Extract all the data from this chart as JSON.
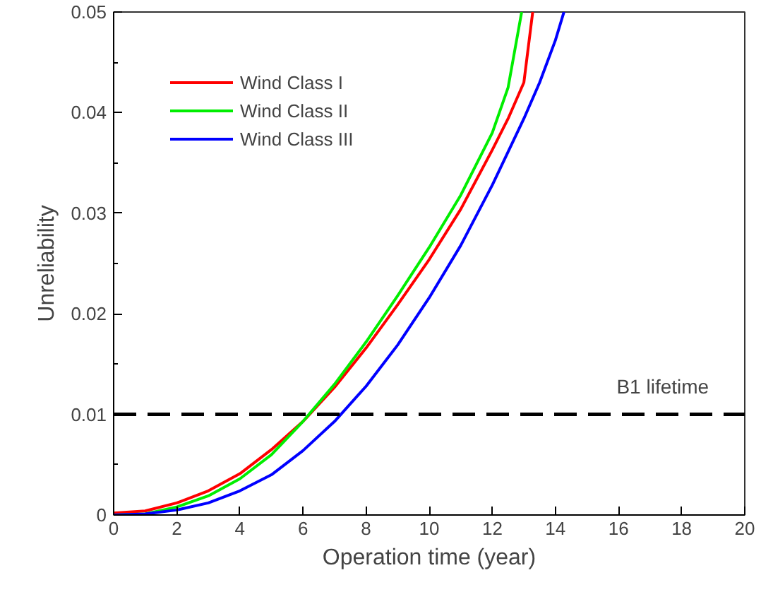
{
  "chart_data": {
    "type": "line",
    "xlabel": "Operation time (year)",
    "ylabel": "Unreliability",
    "xlim": [
      0,
      20
    ],
    "ylim": [
      0,
      0.05
    ],
    "xticks": [
      0,
      2,
      4,
      6,
      8,
      10,
      12,
      14,
      16,
      18,
      20
    ],
    "yticks": [
      0,
      0.01,
      0.02,
      0.03,
      0.04,
      0.05
    ],
    "grid": false,
    "legend": "top left",
    "marker": "none",
    "line_style": "solid",
    "series": [
      {
        "name": "Wind Class I",
        "color": "#ff0000",
        "x": [
          0,
          1,
          2,
          3,
          4,
          5,
          6,
          7,
          8,
          9,
          10,
          11,
          12,
          12.5,
          13,
          13.28
        ],
        "values": [
          0.0002,
          0.0004,
          0.0012,
          0.0024,
          0.0041,
          0.0065,
          0.0093,
          0.0127,
          0.0166,
          0.0209,
          0.0254,
          0.0304,
          0.0363,
          0.0394,
          0.043,
          0.05
        ]
      },
      {
        "name": "Wind Class II",
        "color": "#00ee00",
        "x": [
          0,
          1,
          2,
          3,
          4,
          5,
          6,
          7,
          8,
          9,
          10,
          11,
          12,
          12.5,
          12.93
        ],
        "values": [
          0,
          0.0001,
          0.0008,
          0.0019,
          0.0036,
          0.006,
          0.0093,
          0.013,
          0.0172,
          0.0218,
          0.0266,
          0.0318,
          0.038,
          0.0425,
          0.05
        ]
      },
      {
        "name": "Wind Class III",
        "color": "#0000ff",
        "x": [
          0,
          1,
          2,
          3,
          4,
          5,
          6,
          7,
          8,
          9,
          10,
          11,
          12,
          13,
          13.5,
          14,
          14.27
        ],
        "values": [
          0,
          0.0001,
          0.0005,
          0.0012,
          0.0024,
          0.004,
          0.0064,
          0.0093,
          0.0128,
          0.0169,
          0.0216,
          0.0268,
          0.0328,
          0.0394,
          0.043,
          0.0472,
          0.05
        ]
      }
    ],
    "ref_lines": [
      {
        "axis": "y",
        "value": 0.01,
        "label": "B1 lifetime",
        "color": "#000000",
        "line_style": "dashed"
      }
    ]
  }
}
